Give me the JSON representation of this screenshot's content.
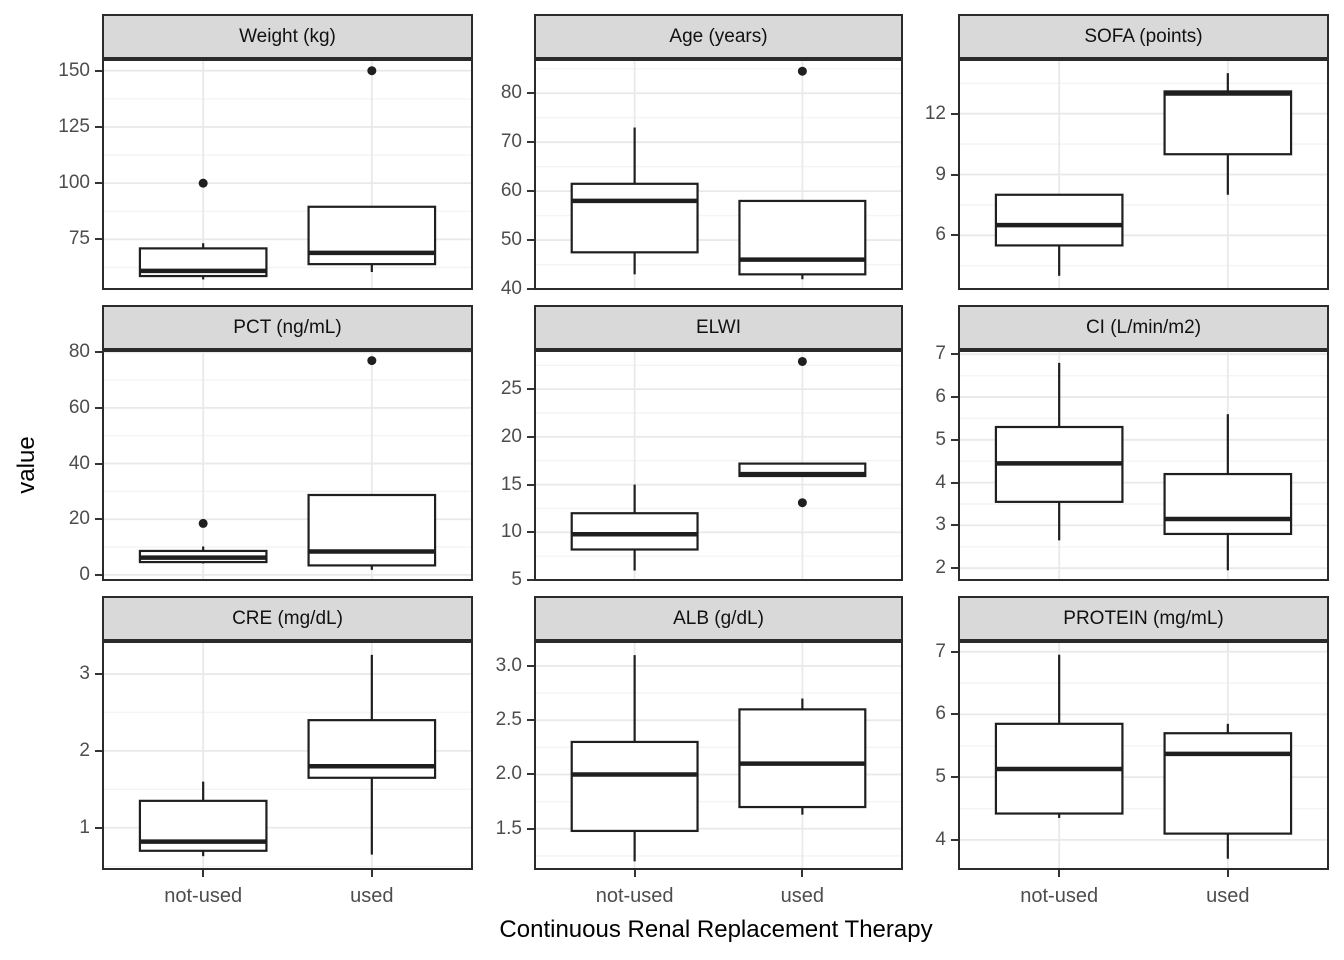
{
  "figure": {
    "y_axis_title": "value",
    "x_axis_title": "Continuous Renal Replacement Therapy"
  },
  "style": {
    "figure_bg": "#FFFFFF",
    "panel_bg": "#FFFFFF",
    "strip_bg": "#D9D9D9",
    "border_color": "#2B2B2B",
    "box_stroke": "#1F1F1F",
    "grid_major": "#E9E9E9",
    "grid_minor": "#F4F4F4",
    "tick_mark_color": "#333333",
    "tick_label_color": "#4D4D4D"
  },
  "chart_data": {
    "type": "boxplot",
    "facet_layout": "3x3",
    "legend": "none",
    "x_categories": [
      "not-used",
      "used"
    ],
    "panels": [
      {
        "title": "Weight (kg)",
        "ylim": [
          52.5,
          155.2
        ],
        "yticks": [
          75,
          100,
          125,
          150
        ],
        "ytick_labels": [
          "75",
          "100",
          "125",
          "150"
        ],
        "boxes": [
          {
            "category": "not-used",
            "whisker_low": 57.2,
            "q1": 58.7,
            "median": 61,
            "q3": 71,
            "whisker_high": 73.3,
            "outliers": [
              100
            ]
          },
          {
            "category": "used",
            "whisker_low": 60.5,
            "q1": 64,
            "median": 69,
            "q3": 89.5,
            "whisker_high": 89.5,
            "outliers": [
              150
            ]
          }
        ]
      },
      {
        "title": "Age (years)",
        "ylim": [
          39.8,
          87
        ],
        "yticks": [
          40,
          50,
          60,
          70,
          80
        ],
        "ytick_labels": [
          "40",
          "50",
          "60",
          "70",
          "80"
        ],
        "boxes": [
          {
            "category": "not-used",
            "whisker_low": 43,
            "q1": 47.5,
            "median": 58,
            "q3": 61.5,
            "whisker_high": 73,
            "outliers": []
          },
          {
            "category": "used",
            "whisker_low": 42,
            "q1": 43,
            "median": 46,
            "q3": 58,
            "whisker_high": 58,
            "outliers": [
              84.5
            ]
          }
        ]
      },
      {
        "title": "SOFA (points)",
        "ylim": [
          3.3,
          14.7
        ],
        "yticks": [
          6,
          9,
          12
        ],
        "ytick_labels": [
          "6",
          "9",
          "12"
        ],
        "boxes": [
          {
            "category": "not-used",
            "whisker_low": 4,
            "q1": 5.5,
            "median": 6.5,
            "q3": 8,
            "whisker_high": 8,
            "outliers": []
          },
          {
            "category": "used",
            "whisker_low": 8,
            "q1": 10,
            "median": 13,
            "q3": 13.1,
            "whisker_high": 14,
            "outliers": []
          }
        ]
      },
      {
        "title": "PCT (ng/mL)",
        "ylim": [
          -2.2,
          80.8
        ],
        "yticks": [
          0,
          20,
          40,
          60,
          80
        ],
        "ytick_labels": [
          "0",
          "20",
          "40",
          "60",
          "80"
        ],
        "boxes": [
          {
            "category": "not-used",
            "whisker_low": 4.1,
            "q1": 4.6,
            "median": 6.2,
            "q3": 8.6,
            "whisker_high": 10.2,
            "outliers": [
              18.5
            ]
          },
          {
            "category": "used",
            "whisker_low": 1.8,
            "q1": 3.4,
            "median": 8.4,
            "q3": 28.7,
            "whisker_high": 28.7,
            "outliers": [
              77
            ]
          }
        ]
      },
      {
        "title": "ELWI",
        "ylim": [
          4.9,
          29.1
        ],
        "yticks": [
          5,
          10,
          15,
          20,
          25
        ],
        "ytick_labels": [
          "5",
          "10",
          "15",
          "20",
          "25"
        ],
        "boxes": [
          {
            "category": "not-used",
            "whisker_low": 6,
            "q1": 8.2,
            "median": 9.8,
            "q3": 12,
            "whisker_high": 15,
            "outliers": []
          },
          {
            "category": "used",
            "whisker_low": 15.9,
            "q1": 15.9,
            "median": 16.1,
            "q3": 17.2,
            "whisker_high": 17.2,
            "outliers": [
              27.9,
              13.1
            ]
          }
        ]
      },
      {
        "title": "CI (L/min/m2)",
        "ylim": [
          1.7,
          7.1
        ],
        "yticks": [
          2,
          3,
          4,
          5,
          6,
          7
        ],
        "ytick_labels": [
          "2",
          "3",
          "4",
          "5",
          "6",
          "7"
        ],
        "boxes": [
          {
            "category": "not-used",
            "whisker_low": 2.65,
            "q1": 3.55,
            "median": 4.45,
            "q3": 5.3,
            "whisker_high": 6.8,
            "outliers": []
          },
          {
            "category": "used",
            "whisker_low": 1.95,
            "q1": 2.8,
            "median": 3.15,
            "q3": 4.2,
            "whisker_high": 5.6,
            "outliers": []
          }
        ]
      },
      {
        "title": "CRE (mg/dL)",
        "ylim": [
          0.45,
          3.43
        ],
        "yticks": [
          1,
          2,
          3
        ],
        "ytick_labels": [
          "1",
          "2",
          "3"
        ],
        "boxes": [
          {
            "category": "not-used",
            "whisker_low": 0.63,
            "q1": 0.7,
            "median": 0.82,
            "q3": 1.35,
            "whisker_high": 1.6,
            "outliers": []
          },
          {
            "category": "used",
            "whisker_low": 0.65,
            "q1": 1.65,
            "median": 1.8,
            "q3": 2.4,
            "whisker_high": 3.25,
            "outliers": []
          }
        ]
      },
      {
        "title": "ALB (g/dL)",
        "ylim": [
          1.12,
          3.23
        ],
        "yticks": [
          1.5,
          2.0,
          2.5,
          3.0
        ],
        "ytick_labels": [
          "1.5",
          "2.0",
          "2.5",
          "3.0"
        ],
        "boxes": [
          {
            "category": "not-used",
            "whisker_low": 1.2,
            "q1": 1.48,
            "median": 2.0,
            "q3": 2.3,
            "whisker_high": 3.1,
            "outliers": []
          },
          {
            "category": "used",
            "whisker_low": 1.63,
            "q1": 1.7,
            "median": 2.1,
            "q3": 2.6,
            "whisker_high": 2.7,
            "outliers": []
          }
        ]
      },
      {
        "title": "PROTEIN (mg/mL)",
        "ylim": [
          3.52,
          7.17
        ],
        "yticks": [
          4,
          5,
          6,
          7
        ],
        "ytick_labels": [
          "4",
          "5",
          "6",
          "7"
        ],
        "boxes": [
          {
            "category": "not-used",
            "whisker_low": 4.35,
            "q1": 4.42,
            "median": 5.13,
            "q3": 5.85,
            "whisker_high": 6.95,
            "outliers": []
          },
          {
            "category": "used",
            "whisker_low": 3.7,
            "q1": 4.1,
            "median": 5.37,
            "q3": 5.7,
            "whisker_high": 5.85,
            "outliers": []
          }
        ]
      }
    ]
  }
}
